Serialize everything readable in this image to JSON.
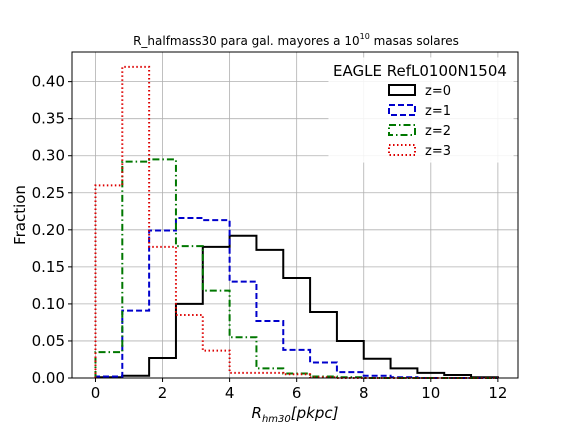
{
  "chart_data": {
    "type": "histogram",
    "title_main": "R_halfmass30 para gal. mayores a 10",
    "title_exp": "10",
    "title_tail": " masas solares",
    "xlabel_main": "R",
    "xlabel_sub": "hm30",
    "xlabel_tail": "[pkpc]",
    "ylabel": "Fraction",
    "xlim": [
      -0.7,
      12.6
    ],
    "ylim": [
      0,
      0.44
    ],
    "xticks": [
      0,
      2,
      4,
      6,
      8,
      10,
      12
    ],
    "xtick_labels": [
      "0",
      "2",
      "4",
      "6",
      "8",
      "10",
      "12"
    ],
    "yticks": [
      0.0,
      0.05,
      0.1,
      0.15,
      0.2,
      0.25,
      0.3,
      0.35,
      0.4
    ],
    "ytick_labels": [
      "0.00",
      "0.05",
      "0.10",
      "0.15",
      "0.20",
      "0.25",
      "0.30",
      "0.35",
      "0.40"
    ],
    "grid": true,
    "legend_title": "EAGLE RefL0100N1504",
    "legend_position": "top-right",
    "bin_edges": [
      0,
      0.8,
      1.6,
      2.4,
      3.2,
      4.0,
      4.8,
      5.6,
      6.4,
      7.2,
      8.0,
      8.8,
      9.6,
      10.4,
      11.2,
      12.0
    ],
    "series": [
      {
        "name": "z=0",
        "color": "#000000",
        "style": "solid",
        "values": [
          0.001,
          0.003,
          0.027,
          0.1,
          0.177,
          0.192,
          0.173,
          0.135,
          0.089,
          0.05,
          0.026,
          0.013,
          0.007,
          0.004,
          0.001
        ]
      },
      {
        "name": "z=1",
        "color": "#0000cc",
        "style": "dashed",
        "values": [
          0.002,
          0.091,
          0.199,
          0.216,
          0.213,
          0.13,
          0.077,
          0.038,
          0.021,
          0.008,
          0.003,
          0.001,
          0.0,
          0.0,
          0.0
        ]
      },
      {
        "name": "z=2",
        "color": "#007700",
        "style": "dashdot",
        "values": [
          0.035,
          0.292,
          0.295,
          0.178,
          0.118,
          0.055,
          0.013,
          0.006,
          0.002,
          0.001,
          0.0,
          0.0,
          0.0,
          0.0,
          0.0
        ]
      },
      {
        "name": "z=3",
        "color": "#dd0000",
        "style": "dotted",
        "values": [
          0.26,
          0.42,
          0.177,
          0.085,
          0.037,
          0.007,
          0.007,
          0.005,
          0.001,
          0.0,
          0.0,
          0.0,
          0.0,
          0.0,
          0.0
        ]
      }
    ]
  }
}
